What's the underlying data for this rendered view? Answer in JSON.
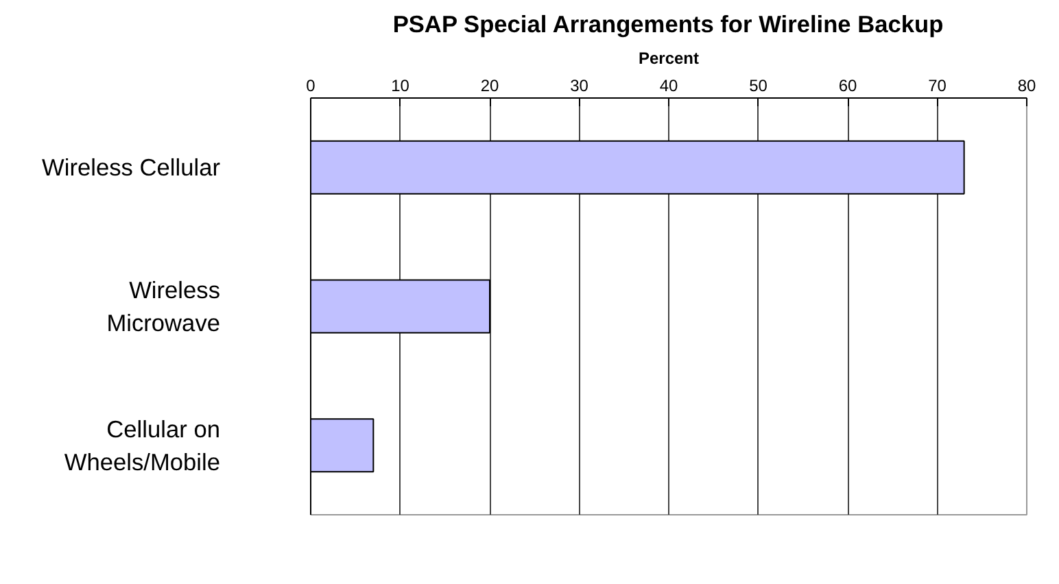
{
  "chart_data": {
    "type": "bar",
    "orientation": "horizontal",
    "title": "PSAP Special Arrangements for Wireline Backup",
    "xlabel": "Percent",
    "categories": [
      "Wireless Cellular",
      "Wireless Microwave",
      "Cellular on Wheels/Mobile"
    ],
    "values": [
      73,
      20,
      7
    ],
    "color": "#c0c0ff",
    "xlim": [
      0,
      80
    ],
    "xticks": [
      0,
      10,
      20,
      30,
      40,
      50,
      60,
      70,
      80
    ],
    "grid": "x"
  }
}
